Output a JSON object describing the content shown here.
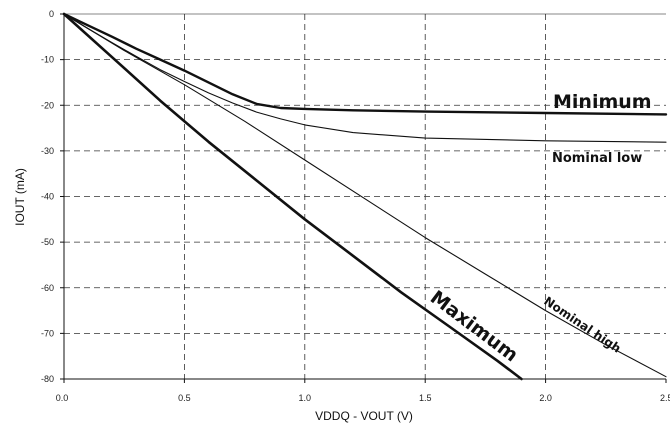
{
  "chart_data": {
    "type": "line",
    "xlabel": "VDDQ - VOUT (V)",
    "ylabel": "IOUT (mA)",
    "xlim": [
      0,
      2.5
    ],
    "ylim": [
      -80,
      0
    ],
    "xticks": [
      "0.0",
      "0.5",
      "1.0",
      "1.5",
      "2.0",
      "2.5"
    ],
    "yticks": [
      "0",
      "-10",
      "-20",
      "-30",
      "-40",
      "-50",
      "-60",
      "-70",
      "-80"
    ],
    "grid": true,
    "series": [
      {
        "name": "Minimum",
        "x": [
          0,
          0.1,
          0.2,
          0.3,
          0.4,
          0.5,
          0.6,
          0.7,
          0.8,
          0.9,
          1.0,
          1.2,
          1.5,
          2.0,
          2.5
        ],
        "y": [
          0,
          -2.5,
          -5,
          -7.6,
          -10,
          -12.4,
          -15,
          -17.6,
          -19.7,
          -20.6,
          -20.8,
          -21.1,
          -21.4,
          -21.7,
          -22
        ]
      },
      {
        "name": "Nominal low",
        "x": [
          0,
          0.1,
          0.2,
          0.3,
          0.4,
          0.5,
          0.6,
          0.7,
          0.8,
          0.9,
          1.0,
          1.2,
          1.5,
          2.0,
          2.5
        ],
        "y": [
          0,
          -3.2,
          -6.3,
          -9.3,
          -12.2,
          -14.8,
          -17.3,
          -19.5,
          -21.5,
          -23,
          -24.3,
          -26,
          -27.2,
          -27.8,
          -28.1
        ]
      },
      {
        "name": "Nominal high",
        "x": [
          0,
          0.25,
          0.5,
          0.75,
          1.0,
          1.25,
          1.5,
          1.75,
          2.0,
          2.25,
          2.5
        ],
        "y": [
          0,
          -8,
          -15.5,
          -23.5,
          -32,
          -40.5,
          -49,
          -57,
          -65,
          -72.5,
          -79.5
        ]
      },
      {
        "name": "Maximum",
        "x": [
          0,
          0.2,
          0.4,
          0.6,
          0.8,
          1.0,
          1.2,
          1.4,
          1.6,
          1.8,
          1.9
        ],
        "y": [
          0,
          -9.5,
          -19,
          -28,
          -36.5,
          -45,
          -53,
          -61,
          -68.5,
          -76,
          -80
        ]
      }
    ],
    "annotations": [
      "Minimum",
      "Nominal low",
      "Nominal high",
      "Maximum"
    ]
  }
}
